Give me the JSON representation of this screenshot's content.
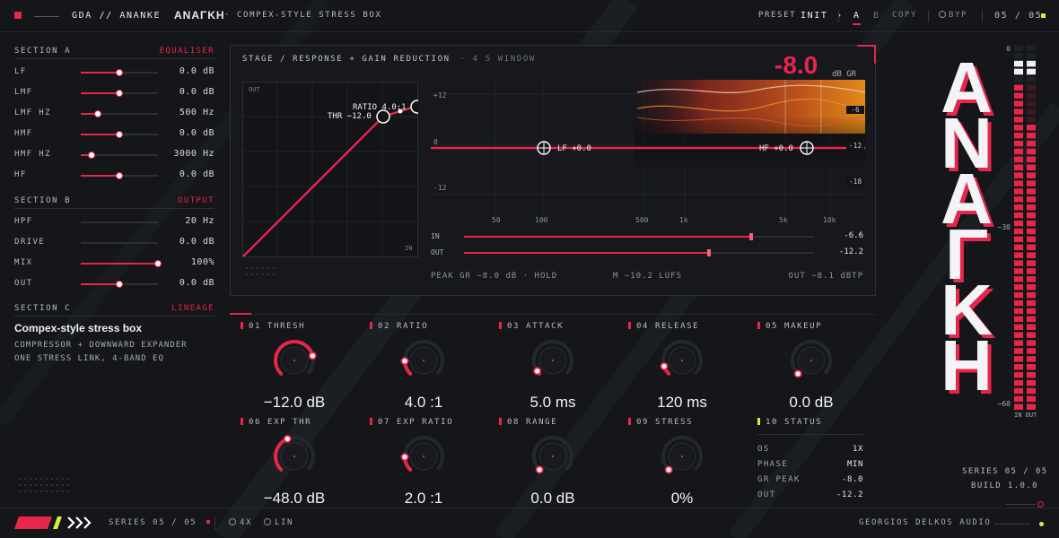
{
  "colors": {
    "accent": "#e8254a",
    "background": "#14161a",
    "panel": "#16181d",
    "text": "#c9ccd3",
    "status_good": "#d6f03a",
    "fill_orange": "#e28a1a"
  },
  "header": {
    "brand": "GDA // ANANKE",
    "logo_greek": "ΑΝΑΓΚΗ",
    "subtitle": "· COMPEX-STYLE STRESS BOX",
    "preset_label": "PRESET",
    "preset_value": "INIT",
    "ab_a": "A",
    "ab_b": "B",
    "copy": "COPY",
    "bypass": "BYP",
    "series_count": "05 / 05"
  },
  "section_a": {
    "title": "SECTION A",
    "tag": "EQUALISER",
    "rows": [
      {
        "label": "LF",
        "value": "0.0 dB",
        "pos": 0.5
      },
      {
        "label": "LMF",
        "value": "0.0 dB",
        "pos": 0.5
      },
      {
        "label": "LMF HZ",
        "value": "500 Hz",
        "pos": 0.22
      },
      {
        "label": "HMF",
        "value": "0.0 dB",
        "pos": 0.5
      },
      {
        "label": "HMF HZ",
        "value": "3000 Hz",
        "pos": 0.14
      },
      {
        "label": "HF",
        "value": "0.0 dB",
        "pos": 0.5
      }
    ]
  },
  "section_b": {
    "title": "SECTION B",
    "tag": "OUTPUT",
    "rows": [
      {
        "label": "HPF",
        "value": "20 Hz",
        "pos": 0.0
      },
      {
        "label": "DRIVE",
        "value": "0.0 dB",
        "pos": 0.0
      },
      {
        "label": "MIX",
        "value": "100%",
        "pos": 1.0
      },
      {
        "label": "OUT",
        "value": "0.0 dB",
        "pos": 0.5
      }
    ]
  },
  "section_c": {
    "title": "SECTION C",
    "tag": "LINEAGE",
    "heading": "Compex-style stress box",
    "line1": "COMPRESSOR + DOWNWARD EXPANDER",
    "line2": "ONE STRESS LINK, 4-BAND EQ"
  },
  "graph": {
    "title": "STAGE / RESPONSE + GAIN REDUCTION",
    "window": "· 4 S WINDOW",
    "gr_value": "-8.0",
    "gr_unit": "dB GR",
    "transfer_out": "OUT",
    "transfer_in": "IN",
    "ratio_label": "RATIO 4.0:1",
    "thr_label": "THR −12.0",
    "db_ticks": [
      "+12",
      "0",
      "-12"
    ],
    "gr_ticks": [
      "-6",
      "-12",
      "-18"
    ],
    "freq_ticks": [
      "50",
      "100",
      "500",
      "1k",
      "5k",
      "10k"
    ],
    "lf_node": "LF +0.0",
    "hf_node": "HF +0.0",
    "in_label": "IN",
    "in_value": "-6.6",
    "in_level": 0.82,
    "out_label": "OUT",
    "out_value": "-12.2",
    "out_level": 0.7,
    "peak_gr": "PEAK GR −8.0 dB · HOLD",
    "lufs": "M −10.2 LUFS",
    "out_peak": "OUT −8.1 dBTP"
  },
  "knobs": [
    {
      "id": "01 THRESH",
      "value": "−12.0 dB",
      "amount": 0.78
    },
    {
      "id": "02 RATIO",
      "value": "4.0 :1",
      "amount": 0.16
    },
    {
      "id": "03 ATTACK",
      "value": "5.0 ms",
      "amount": 0.04
    },
    {
      "id": "04 RELEASE",
      "value": "120 ms",
      "amount": 0.1
    },
    {
      "id": "05 MAKEUP",
      "value": "0.0 dB",
      "amount": 0.0
    },
    {
      "id": "06 EXP THR",
      "value": "−48.0 dB",
      "amount": 0.42
    },
    {
      "id": "07 EXP RATIO",
      "value": "2.0 :1",
      "amount": 0.16
    },
    {
      "id": "08 RANGE",
      "value": "0.0 dB",
      "amount": 0.0
    },
    {
      "id": "09 STRESS",
      "value": "0%",
      "amount": 0.0
    }
  ],
  "status": {
    "title": "10 STATUS",
    "rows": [
      {
        "label": "OS",
        "value": "1X"
      },
      {
        "label": "PHASE",
        "value": "MIN"
      },
      {
        "label": "GR PEAK",
        "value": "-8.0"
      },
      {
        "label": "OUT",
        "value": "-12.2"
      }
    ]
  },
  "right": {
    "letters": [
      "Α",
      "Ν",
      "Α",
      "Γ",
      "Κ",
      "Η"
    ],
    "meter_top": "0",
    "meter_mid": "−30",
    "meter_bot": "−60",
    "meter_io": "IN OUT",
    "series": "SERIES 05 / 05",
    "build": "BUILD 1.0.0"
  },
  "footer": {
    "series": "SERIES 05 / 05",
    "os": "4X",
    "lin": "LIN",
    "vendor": "GEORGIOS DELKOS AUDIO"
  }
}
